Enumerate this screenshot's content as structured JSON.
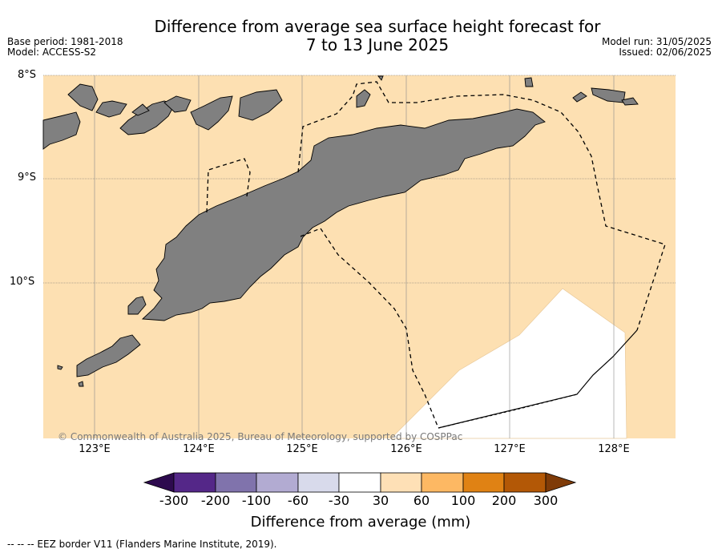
{
  "header": {
    "title_line1": "Difference from average sea surface height forecast for",
    "title_line2": "7 to 13 June 2025",
    "base_period": "Base period: 1981-2018",
    "model": "Model: ACCESS-S2",
    "model_run": "Model run: 31/05/2025",
    "issued": "Issued: 02/06/2025"
  },
  "map": {
    "latitude_labels": [
      "8°S",
      "9°S",
      "10°S"
    ],
    "longitude_labels": [
      "123°E",
      "124°E",
      "125°E",
      "126°E",
      "127°E",
      "128°E"
    ],
    "copyright": "© Commonwealth of Australia 2025, Bureau of Meteorology, supported by COSPPac",
    "colors": {
      "sea_anomaly_30_60": "#fde0b2",
      "sea_anomaly_neutral": "#ffffff",
      "land": "#808080",
      "grid": "#8a8a8a"
    }
  },
  "colorbar": {
    "title": "Difference from average (mm)",
    "ticks": [
      "-300",
      "-200",
      "-100",
      "-60",
      "-30",
      "30",
      "60",
      "100",
      "200",
      "300"
    ],
    "colors": {
      "under": "#2d0a4e",
      "c1": "#542788",
      "c2": "#8073ac",
      "c3": "#b2abd2",
      "c4": "#d8daeb",
      "c5": "#ffffff",
      "c6": "#fee0b6",
      "c7": "#fdb863",
      "c8": "#e08214",
      "c9": "#b35806",
      "over": "#7f3b08"
    }
  },
  "legend_note": "--  --  -- EEZ border V11 (Flanders Marine Institute, 2019)."
}
